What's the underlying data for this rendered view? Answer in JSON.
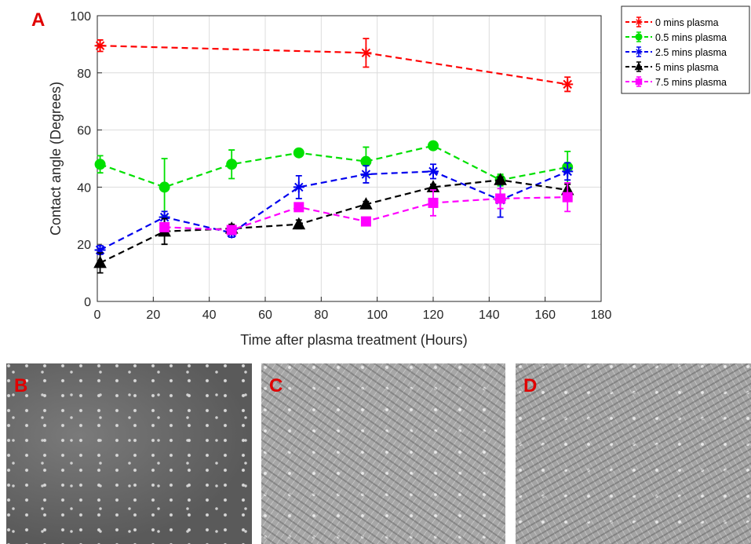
{
  "panel_labels": {
    "a": "A",
    "b": "B",
    "c": "C",
    "d": "D"
  },
  "colors": {
    "panel_letter": "#e00000",
    "grid": "#dcdcdc",
    "axis": "#262626"
  },
  "chart_data": {
    "type": "line",
    "xlabel": "Time after plasma treatment (Hours)",
    "ylabel": "Contact angle (Degrees)",
    "xlim": [
      0,
      180
    ],
    "ylim": [
      0,
      100
    ],
    "xticks": [
      0,
      20,
      40,
      60,
      80,
      100,
      120,
      140,
      160,
      180
    ],
    "yticks": [
      0,
      20,
      40,
      60,
      80,
      100
    ],
    "grid": true,
    "legend_position": "outside-top-right",
    "line_style": "dashed",
    "series": [
      {
        "name": "0 mins plasma",
        "color": "#ff0000",
        "marker": "asterisk",
        "x": [
          1,
          96,
          168
        ],
        "y": [
          89.5,
          87,
          76
        ],
        "err": [
          2,
          5,
          2.5
        ]
      },
      {
        "name": "0.5 mins plasma",
        "color": "#00e000",
        "marker": "circle",
        "x": [
          1,
          24,
          48,
          72,
          96,
          120,
          144,
          168
        ],
        "y": [
          48,
          40,
          48,
          52,
          49,
          54.5,
          42.5,
          47
        ],
        "err": [
          3,
          10,
          5,
          1,
          5,
          1,
          2,
          5.5
        ]
      },
      {
        "name": "2.5 mins plasma",
        "color": "#0000ee",
        "marker": "asterisk",
        "x": [
          1,
          24,
          48,
          72,
          96,
          120,
          144,
          168
        ],
        "y": [
          18,
          29.5,
          24,
          40,
          44.5,
          45.5,
          35.5,
          45.5
        ],
        "err": [
          1.5,
          2,
          1.5,
          4,
          3,
          2.5,
          6,
          3
        ]
      },
      {
        "name": "5 mins plasma",
        "color": "#000000",
        "marker": "triangle",
        "x": [
          1,
          24,
          48,
          72,
          96,
          120,
          144,
          168
        ],
        "y": [
          13.5,
          24.5,
          25.5,
          27,
          34,
          40,
          42.5,
          39
        ],
        "err": [
          3.5,
          4.5,
          1.5,
          1.5,
          1,
          1,
          1,
          2
        ]
      },
      {
        "name": "7.5 mins plasma",
        "color": "#ff00ff",
        "marker": "square",
        "x": [
          24,
          48,
          72,
          96,
          120,
          144,
          168
        ],
        "y": [
          26,
          25,
          33,
          28,
          34.5,
          36,
          36.5
        ],
        "err": [
          1.5,
          1,
          1,
          1,
          4.5,
          3.5,
          5
        ]
      }
    ]
  }
}
